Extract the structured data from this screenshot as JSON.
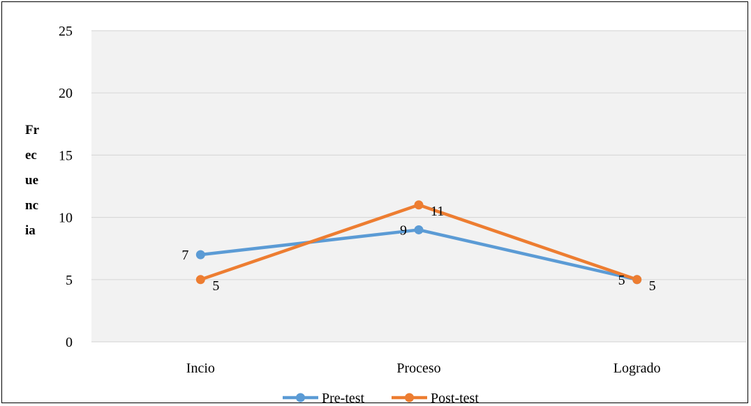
{
  "chart_data": {
    "type": "line",
    "title": "",
    "xlabel": "",
    "ylabel": "Frecuencia",
    "ylabel_lines": [
      "Fr",
      "ec",
      "ue",
      "nc",
      "ia"
    ],
    "categories": [
      "Incio",
      "Proceso",
      "Logrado"
    ],
    "ylim": [
      0,
      25
    ],
    "yticks": [
      0,
      5,
      10,
      15,
      20,
      25
    ],
    "grid": true,
    "legend_position": "bottom",
    "series": [
      {
        "name": "Pre-test",
        "values": [
          7,
          9,
          5
        ],
        "color": "#5B9BD5",
        "data_labels": [
          "7",
          "9",
          "5"
        ],
        "label_placement": "left"
      },
      {
        "name": "Post-test",
        "values": [
          5,
          11,
          5
        ],
        "color": "#ED7D31",
        "data_labels": [
          "5",
          "11",
          "5"
        ],
        "label_placement": "right"
      }
    ],
    "plot_background": "#F2F2F2",
    "gridline_color": "#D9D9D9"
  }
}
